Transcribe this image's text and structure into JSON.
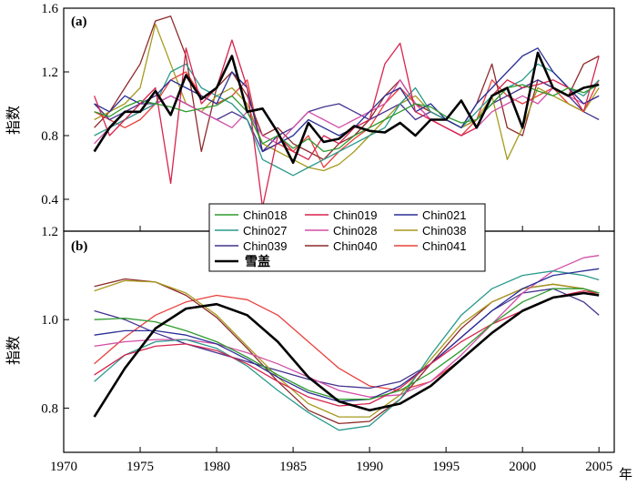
{
  "figure": {
    "year_unit": "年",
    "colors": {
      "Chin018": "#2e9a2e",
      "Chin019": "#d8244f",
      "Chin021": "#2b2f95",
      "Chin027": "#2a9a8c",
      "Chin028": "#d24fa8",
      "Chin038": "#a79a1f",
      "Chin039": "#44338e",
      "Chin040": "#8e2a2a",
      "Chin041": "#e8403c",
      "snow": "#000000"
    },
    "legend": {
      "entries": [
        "Chin018",
        "Chin019",
        "Chin021",
        "Chin027",
        "Chin028",
        "Chin038",
        "Chin039",
        "Chin040",
        "Chin041"
      ],
      "snow_label": "雪盖"
    }
  },
  "chart_data": [
    {
      "panel": "(a)",
      "type": "line",
      "xlabel": "",
      "ylabel": "指数",
      "xlim": [
        1970,
        2006
      ],
      "ylim": [
        0.2,
        1.6
      ],
      "yticks": [
        0.4,
        0.8,
        1.2,
        1.6
      ],
      "ytick_labels": [
        "0.4",
        "0.8",
        "1.2",
        "1.6"
      ],
      "x": [
        1972,
        1973,
        1974,
        1975,
        1976,
        1977,
        1978,
        1979,
        1980,
        1981,
        1982,
        1983,
        1984,
        1985,
        1986,
        1987,
        1988,
        1989,
        1990,
        1991,
        1992,
        1993,
        1994,
        1995,
        1996,
        1997,
        1998,
        1999,
        2000,
        2001,
        2002,
        2003,
        2004,
        2005
      ],
      "series": [
        {
          "name": "Chin018",
          "values": [
            0.95,
            0.92,
            0.98,
            1.02,
            1.0,
            0.98,
            0.95,
            0.97,
            0.99,
            1.05,
            0.95,
            0.75,
            0.8,
            0.72,
            0.78,
            0.7,
            0.72,
            0.8,
            0.85,
            0.9,
            0.95,
            1.0,
            0.98,
            0.92,
            0.88,
            0.9,
            1.0,
            1.1,
            1.12,
            1.08,
            1.05,
            1.1,
            1.07,
            1.12
          ]
        },
        {
          "name": "Chin019",
          "values": [
            1.05,
            0.8,
            0.9,
            1.0,
            1.1,
            0.5,
            1.35,
            1.0,
            1.1,
            1.4,
            1.1,
            0.35,
            0.8,
            0.7,
            0.65,
            0.8,
            0.75,
            0.85,
            0.9,
            1.25,
            1.38,
            0.95,
            0.9,
            0.85,
            0.8,
            0.85,
            1.05,
            1.15,
            1.1,
            1.12,
            1.15,
            1.1,
            0.95,
            1.3
          ]
        },
        {
          "name": "Chin021",
          "values": [
            1.0,
            0.95,
            1.05,
            1.0,
            1.05,
            1.15,
            1.1,
            1.05,
            1.0,
            1.2,
            1.1,
            0.7,
            0.75,
            0.8,
            0.9,
            0.85,
            0.8,
            0.85,
            0.95,
            1.05,
            1.1,
            0.95,
            1.0,
            0.9,
            0.85,
            1.0,
            1.1,
            1.2,
            1.3,
            1.35,
            1.2,
            1.1,
            1.0,
            1.05
          ]
        },
        {
          "name": "Chin027",
          "values": [
            0.8,
            0.85,
            0.9,
            0.95,
            1.0,
            1.2,
            1.25,
            1.1,
            1.05,
            1.0,
            0.9,
            0.65,
            0.6,
            0.55,
            0.6,
            0.65,
            0.7,
            0.75,
            0.8,
            0.85,
            1.0,
            1.1,
            0.95,
            0.9,
            0.85,
            0.95,
            1.05,
            1.1,
            1.15,
            1.25,
            1.2,
            1.1,
            1.05,
            1.15
          ]
        },
        {
          "name": "Chin028",
          "values": [
            0.75,
            0.85,
            0.9,
            0.95,
            1.0,
            1.05,
            1.0,
            0.95,
            0.9,
            0.85,
            0.95,
            0.8,
            0.75,
            0.85,
            0.95,
            0.9,
            0.85,
            0.9,
            0.95,
            1.0,
            1.15,
            1.0,
            0.9,
            0.85,
            0.8,
            0.85,
            0.95,
            1.0,
            1.05,
            1.0,
            1.1,
            1.05,
            1.0,
            1.05
          ]
        },
        {
          "name": "Chin038",
          "values": [
            0.9,
            0.95,
            1.0,
            1.1,
            1.5,
            1.25,
            1.0,
            0.95,
            1.05,
            1.1,
            1.0,
            0.75,
            0.7,
            0.65,
            0.6,
            0.58,
            0.62,
            0.7,
            0.8,
            0.9,
            1.0,
            1.05,
            0.95,
            0.9,
            0.85,
            0.9,
            1.05,
            0.65,
            0.85,
            1.1,
            1.05,
            1.0,
            0.95,
            1.1
          ]
        },
        {
          "name": "Chin039",
          "values": [
            1.0,
            0.9,
            0.95,
            1.0,
            1.0,
            1.05,
            1.0,
            0.95,
            0.9,
            0.95,
            0.9,
            0.7,
            0.8,
            0.85,
            0.95,
            0.98,
            1.0,
            0.95,
            0.9,
            0.95,
            1.0,
            0.9,
            0.95,
            0.9,
            0.85,
            0.9,
            1.0,
            1.05,
            1.1,
            1.15,
            1.1,
            1.05,
            0.95,
            0.9
          ]
        },
        {
          "name": "Chin040",
          "values": [
            0.85,
            0.95,
            1.1,
            1.25,
            1.52,
            1.55,
            1.3,
            0.7,
            1.1,
            1.2,
            1.05,
            0.8,
            0.85,
            0.75,
            0.7,
            0.65,
            0.75,
            0.8,
            0.9,
            1.05,
            1.15,
            1.0,
            0.95,
            0.9,
            0.85,
            1.0,
            1.25,
            0.85,
            0.8,
            1.15,
            1.1,
            1.05,
            1.25,
            1.3
          ]
        },
        {
          "name": "Chin041",
          "values": [
            0.95,
            0.9,
            0.85,
            0.9,
            1.0,
            1.15,
            1.2,
            1.05,
            1.0,
            1.05,
            1.15,
            0.7,
            0.75,
            0.7,
            0.8,
            0.6,
            0.7,
            0.78,
            0.85,
            1.0,
            1.1,
            1.0,
            0.9,
            0.85,
            0.8,
            0.9,
            1.15,
            1.05,
            1.0,
            1.05,
            1.1,
            1.0,
            0.95,
            1.15
          ]
        },
        {
          "name": "雪盖",
          "values": [
            0.7,
            0.85,
            0.95,
            0.95,
            1.08,
            0.93,
            1.18,
            1.03,
            1.1,
            1.3,
            0.95,
            0.97,
            0.82,
            0.63,
            0.88,
            0.76,
            0.78,
            0.86,
            0.83,
            0.82,
            0.88,
            0.8,
            0.9,
            0.9,
            1.02,
            0.85,
            1.05,
            1.1,
            0.85,
            1.32,
            1.1,
            1.05,
            1.1,
            1.12
          ]
        }
      ]
    },
    {
      "panel": "(b)",
      "type": "line",
      "xlabel": "年",
      "ylabel": "指数",
      "xlim": [
        1970,
        2006
      ],
      "ylim": [
        0.7,
        1.2
      ],
      "yticks": [
        0.8,
        1.0,
        1.2
      ],
      "ytick_labels": [
        "0.8",
        "1.0",
        "1.2"
      ],
      "xticks": [
        1970,
        1975,
        1980,
        1985,
        1990,
        1995,
        2000,
        2005
      ],
      "xtick_labels": [
        "1970",
        "1975",
        "1980",
        "1985",
        "1990",
        "1995",
        "2000",
        "2005"
      ],
      "x": [
        1972,
        1974,
        1976,
        1978,
        1980,
        1982,
        1984,
        1986,
        1988,
        1990,
        1992,
        1994,
        1996,
        1998,
        2000,
        2002,
        2004,
        2005
      ],
      "series": [
        {
          "name": "Chin018",
          "values": [
            1.0,
            1.003,
            0.995,
            0.975,
            0.95,
            0.915,
            0.875,
            0.84,
            0.82,
            0.82,
            0.84,
            0.88,
            0.93,
            0.99,
            1.04,
            1.07,
            1.07,
            1.06
          ]
        },
        {
          "name": "Chin019",
          "values": [
            0.875,
            0.92,
            0.94,
            0.945,
            0.93,
            0.9,
            0.86,
            0.825,
            0.805,
            0.81,
            0.845,
            0.9,
            0.95,
            0.99,
            1.02,
            1.05,
            1.065,
            1.06
          ]
        },
        {
          "name": "Chin021",
          "values": [
            0.965,
            0.975,
            0.975,
            0.965,
            0.945,
            0.91,
            0.87,
            0.835,
            0.815,
            0.82,
            0.85,
            0.9,
            0.96,
            1.02,
            1.07,
            1.1,
            1.11,
            1.115
          ]
        },
        {
          "name": "Chin027",
          "values": [
            0.86,
            0.92,
            0.95,
            0.955,
            0.935,
            0.895,
            0.84,
            0.79,
            0.75,
            0.76,
            0.82,
            0.92,
            1.01,
            1.07,
            1.1,
            1.11,
            1.1,
            1.09
          ]
        },
        {
          "name": "Chin028",
          "values": [
            0.94,
            0.95,
            0.955,
            0.955,
            0.945,
            0.925,
            0.9,
            0.87,
            0.84,
            0.825,
            0.83,
            0.86,
            0.92,
            0.99,
            1.06,
            1.11,
            1.14,
            1.145
          ]
        },
        {
          "name": "Chin038",
          "values": [
            1.065,
            1.088,
            1.085,
            1.06,
            1.01,
            0.94,
            0.87,
            0.81,
            0.78,
            0.78,
            0.83,
            0.91,
            0.99,
            1.04,
            1.07,
            1.08,
            1.07,
            1.06
          ]
        },
        {
          "name": "Chin039",
          "values": [
            1.02,
            1.0,
            0.97,
            0.945,
            0.925,
            0.905,
            0.885,
            0.865,
            0.85,
            0.845,
            0.86,
            0.9,
            0.96,
            1.02,
            1.06,
            1.07,
            1.04,
            1.01
          ]
        },
        {
          "name": "Chin040",
          "values": [
            1.075,
            1.092,
            1.085,
            1.055,
            1.005,
            0.935,
            0.86,
            0.795,
            0.765,
            0.77,
            0.82,
            0.9,
            0.98,
            1.04,
            1.07,
            1.08,
            1.07,
            1.06
          ]
        },
        {
          "name": "Chin041",
          "values": [
            0.9,
            0.96,
            1.01,
            1.04,
            1.055,
            1.045,
            1.01,
            0.95,
            0.89,
            0.85,
            0.84,
            0.86,
            0.91,
            0.97,
            1.02,
            1.05,
            1.06,
            1.06
          ]
        },
        {
          "name": "雪盖",
          "values": [
            0.78,
            0.89,
            0.98,
            1.025,
            1.035,
            1.01,
            0.95,
            0.87,
            0.815,
            0.795,
            0.81,
            0.85,
            0.91,
            0.97,
            1.02,
            1.05,
            1.06,
            1.055
          ]
        }
      ]
    }
  ]
}
